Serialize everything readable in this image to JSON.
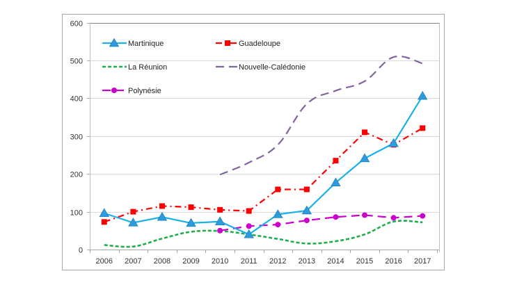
{
  "chart_data": {
    "type": "line",
    "title": "",
    "xlabel": "",
    "ylabel": "",
    "ylim": [
      0,
      600
    ],
    "yticks": [
      0,
      100,
      200,
      300,
      400,
      500,
      600
    ],
    "grid": true,
    "legend_position": "top-left (inside plot)",
    "categories": [
      "2006",
      "2007",
      "2008",
      "2009",
      "2010",
      "2011",
      "2012",
      "2013",
      "2014",
      "2015",
      "2016",
      "2017"
    ],
    "series": [
      {
        "name": "Martinique",
        "color": "#1ab0e8",
        "line_style": "solid",
        "marker": "triangle",
        "values": [
          96,
          71,
          86,
          70,
          74,
          40,
          93,
          103,
          177,
          241,
          281,
          406
        ]
      },
      {
        "name": "Guadeloupe",
        "color": "#ff0000",
        "line_style": "dash-dot",
        "marker": "square",
        "values": [
          73,
          100,
          115,
          112,
          105,
          102,
          159,
          159,
          235,
          310,
          277,
          321
        ]
      },
      {
        "name": "La Réunion",
        "color": "#1fae4b",
        "line_style": "short-dash",
        "marker": "none",
        "values": [
          12,
          8,
          29,
          47,
          49,
          40,
          28,
          16,
          22,
          40,
          74,
          72
        ]
      },
      {
        "name": "Nouvelle-Calédonie",
        "color": "#8064a2",
        "line_style": "long-dash",
        "marker": "none",
        "values": [
          null,
          null,
          null,
          null,
          198,
          230,
          277,
          385,
          420,
          445,
          509,
          492
        ]
      },
      {
        "name": "Polynésie",
        "color": "#cc00cc",
        "line_style": "long-dash",
        "marker": "circle",
        "values": [
          null,
          null,
          null,
          null,
          50,
          62,
          66,
          77,
          86,
          91,
          84,
          89
        ]
      }
    ]
  }
}
